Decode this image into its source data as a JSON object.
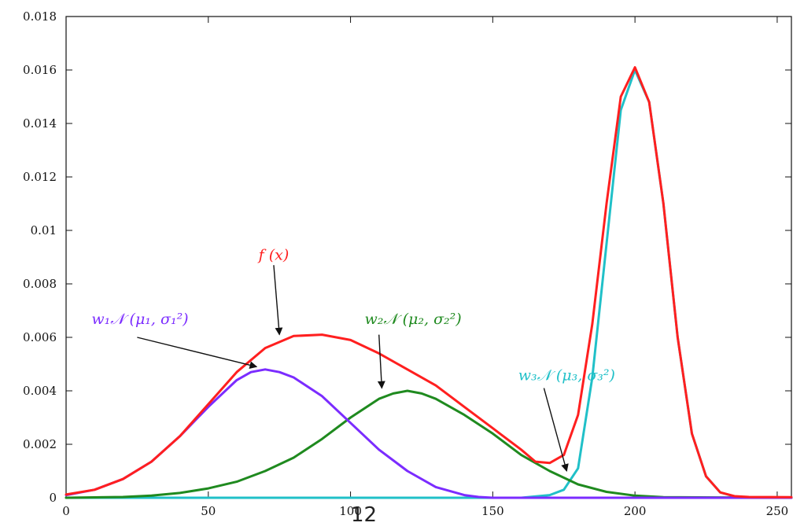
{
  "page_number": "12",
  "chart_data": {
    "type": "line",
    "title": "",
    "xlabel": "",
    "ylabel": "",
    "xlim": [
      0,
      255
    ],
    "ylim": [
      0,
      0.018
    ],
    "grid": false,
    "x_ticks": [
      0,
      50,
      100,
      150,
      200,
      250
    ],
    "x_tick_labels": [
      "0",
      "50",
      "100",
      "150",
      "200",
      "250"
    ],
    "y_ticks": [
      0,
      0.002,
      0.004,
      0.006,
      0.008,
      0.01,
      0.012,
      0.014,
      0.016,
      0.018
    ],
    "y_tick_labels": [
      "0",
      "0.002",
      "0.004",
      "0.006",
      "0.008",
      "0.01",
      "0.012",
      "0.014",
      "0.016",
      "0.018"
    ],
    "series": [
      {
        "key": "f",
        "color": "#ff1f1f",
        "x": [
          0,
          10,
          20,
          30,
          40,
          50,
          60,
          70,
          80,
          90,
          100,
          110,
          120,
          130,
          140,
          150,
          160,
          165,
          170,
          175,
          180,
          185,
          190,
          195,
          200,
          205,
          210,
          215,
          220,
          225,
          230,
          235,
          240,
          255
        ],
        "values": [
          0.00012,
          0.0003,
          0.0007,
          0.00135,
          0.0023,
          0.0035,
          0.0047,
          0.0056,
          0.00605,
          0.0061,
          0.0059,
          0.0054,
          0.0048,
          0.0042,
          0.0034,
          0.0026,
          0.0018,
          0.00135,
          0.0013,
          0.0016,
          0.0031,
          0.0065,
          0.011,
          0.015,
          0.0161,
          0.0148,
          0.011,
          0.006,
          0.0024,
          0.0008,
          0.0002,
          6e-05,
          3e-05,
          2e-05
        ]
      },
      {
        "key": "c1",
        "color": "#7b2cff",
        "x": [
          0,
          10,
          20,
          30,
          40,
          50,
          60,
          65,
          70,
          75,
          80,
          90,
          100,
          110,
          120,
          130,
          140,
          145,
          150,
          160,
          255
        ],
        "values": [
          0.0001,
          0.0003,
          0.0007,
          0.00135,
          0.0023,
          0.0034,
          0.0044,
          0.0047,
          0.0048,
          0.0047,
          0.0045,
          0.0038,
          0.0028,
          0.0018,
          0.001,
          0.0004,
          0.0001,
          3e-05,
          0.0,
          0.0,
          0.0
        ]
      },
      {
        "key": "c2",
        "color": "#1f8a1f",
        "x": [
          0,
          20,
          30,
          40,
          50,
          60,
          70,
          80,
          90,
          100,
          110,
          115,
          120,
          125,
          130,
          140,
          150,
          160,
          170,
          180,
          190,
          200,
          210,
          255
        ],
        "values": [
          0.0,
          3e-05,
          8e-05,
          0.00018,
          0.00035,
          0.0006,
          0.001,
          0.0015,
          0.0022,
          0.003,
          0.0037,
          0.0039,
          0.004,
          0.0039,
          0.0037,
          0.0031,
          0.0024,
          0.0016,
          0.001,
          0.0005,
          0.00022,
          8e-05,
          2e-05,
          0.0
        ]
      },
      {
        "key": "c3",
        "color": "#20c0c8",
        "x": [
          0,
          160,
          170,
          175,
          180,
          185,
          190,
          195,
          200,
          205,
          210,
          215,
          220,
          225,
          230,
          235,
          240,
          255
        ],
        "values": [
          0.0,
          0.0,
          0.0001,
          0.0003,
          0.0011,
          0.0045,
          0.0095,
          0.0145,
          0.016,
          0.0148,
          0.011,
          0.006,
          0.0024,
          0.0008,
          0.0002,
          5e-05,
          0.0,
          0.0
        ]
      }
    ],
    "annotations": [
      {
        "key": "f",
        "label": "f (x)",
        "color": "#ff1f1f",
        "text_at": [
          73,
          0.0089
        ],
        "arrow_from": [
          73,
          0.0087
        ],
        "arrow_to": [
          75,
          0.0061
        ]
      },
      {
        "key": "c1",
        "label": "w₁𝒩 (μ₁, σ₁²)",
        "color": "#7b2cff",
        "text_at": [
          26,
          0.0065
        ],
        "arrow_from": [
          25,
          0.006
        ],
        "arrow_to": [
          67,
          0.0049
        ]
      },
      {
        "key": "c2",
        "label": "w₂𝒩 (μ₂, σ₂²)",
        "color": "#1f8a1f",
        "text_at": [
          122,
          0.0065
        ],
        "arrow_from": [
          110,
          0.0061
        ],
        "arrow_to": [
          111,
          0.0041
        ]
      },
      {
        "key": "c3",
        "label": "w₃𝒩 (μ₃, σ₃²)",
        "color": "#20c0c8",
        "text_at": [
          176,
          0.0044
        ],
        "arrow_from": [
          168,
          0.0041
        ],
        "arrow_to": [
          176,
          0.001
        ]
      }
    ]
  }
}
